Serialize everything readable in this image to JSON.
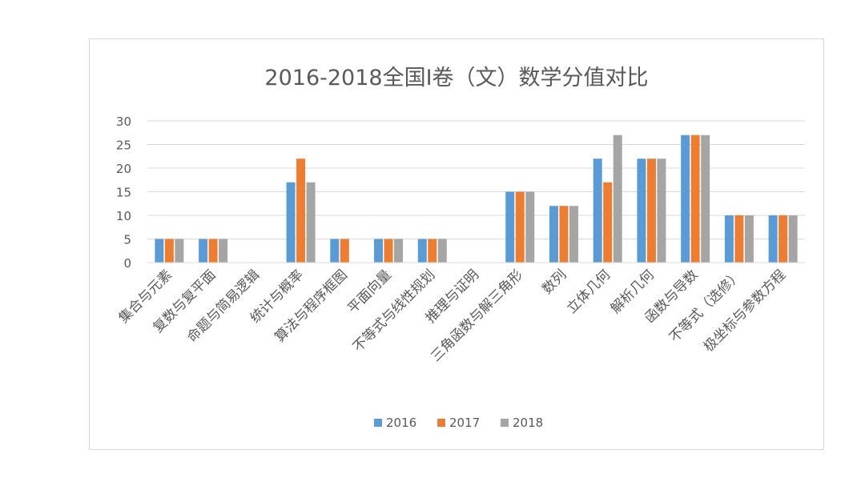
{
  "chart_data": {
    "type": "bar",
    "title": "2016-2018全国Ⅰ卷（文）数学分值对比",
    "ylim": [
      0,
      30
    ],
    "yticks": [
      0,
      5,
      10,
      15,
      20,
      25,
      30
    ],
    "grid": true,
    "legend_position": "bottom",
    "categories": [
      "集合与元素",
      "复数与复平面",
      "命题与简易逻辑",
      "统计与概率",
      "算法与程序框图",
      "平面向量",
      "不等式与线性规划",
      "推理与证明",
      "三角函数与解三角形",
      "数列",
      "立体几何",
      "解析几何",
      "函数与导数",
      "不等式（选修）",
      "极坐标与参数方程"
    ],
    "series": [
      {
        "name": "2016",
        "color": "#5b9bd5",
        "values": [
          5,
          5,
          0,
          17,
          5,
          5,
          5,
          0,
          15,
          12,
          22,
          22,
          27,
          10,
          10
        ]
      },
      {
        "name": "2017",
        "color": "#ed7d31",
        "values": [
          5,
          5,
          0,
          22,
          5,
          5,
          5,
          0,
          15,
          12,
          17,
          22,
          27,
          10,
          10
        ]
      },
      {
        "name": "2018",
        "color": "#a5a5a5",
        "values": [
          5,
          5,
          0,
          17,
          0,
          5,
          5,
          0,
          15,
          12,
          27,
          22,
          27,
          10,
          10
        ]
      }
    ]
  }
}
